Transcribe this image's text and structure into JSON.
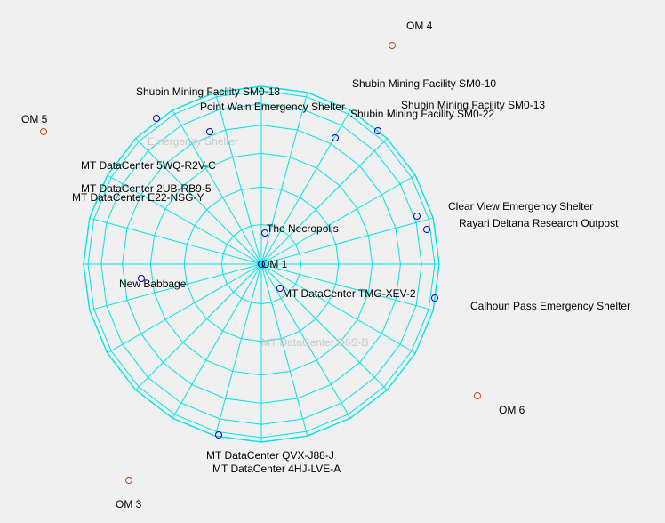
{
  "colors": {
    "background": "#f0f0f0",
    "sphere": "#00e5e5",
    "marker_blue": "#0000cc",
    "marker_orange": "#d04010",
    "label": "#000000",
    "label_faint": "#c8c8c8"
  },
  "sphere": {
    "meridians": 24,
    "parallels": 7
  },
  "labels": [
    {
      "text": "OM 4",
      "tone": "dark",
      "marker": "orange"
    },
    {
      "text": "OM 5",
      "tone": "dark",
      "marker": "orange"
    },
    {
      "text": "OM 6",
      "tone": "dark",
      "marker": "orange"
    },
    {
      "text": "OM 3",
      "tone": "dark",
      "marker": "orange"
    },
    {
      "text": "OM 1",
      "tone": "dark",
      "marker": "blue"
    },
    {
      "text": "Shubin Mining Facility SM0-10",
      "tone": "dark",
      "marker": "none"
    },
    {
      "text": "Shubin Mining Facility SM0-13",
      "tone": "dark",
      "marker": "blue"
    },
    {
      "text": "Shubin Mining Facility SM0-22",
      "tone": "dark",
      "marker": "blue"
    },
    {
      "text": "Shubin Mining Facility SM0-18",
      "tone": "dark",
      "marker": "blue"
    },
    {
      "text": "Point Wain Emergency Shelter",
      "tone": "dark",
      "marker": "blue"
    },
    {
      "text": "Emergency Shelter",
      "tone": "faint",
      "marker": "none"
    },
    {
      "text": "MT DataCenter 5WQ-R2V-C",
      "tone": "dark",
      "marker": "none"
    },
    {
      "text": "MT DataCenter 2UB-RB9-5",
      "tone": "dark",
      "marker": "none"
    },
    {
      "text": "MT DataCenter E22-NSG-Y",
      "tone": "dark",
      "marker": "none"
    },
    {
      "text": "Clear View Emergency Shelter",
      "tone": "dark",
      "marker": "blue"
    },
    {
      "text": "Rayari Deltana Research Outpost",
      "tone": "dark",
      "marker": "blue"
    },
    {
      "text": "The Necropolis",
      "tone": "dark",
      "marker": "blue"
    },
    {
      "text": "New Babbage",
      "tone": "dark",
      "marker": "blue"
    },
    {
      "text": "MT DataCenter TMG-XEV-2",
      "tone": "dark",
      "marker": "blue"
    },
    {
      "text": "Calhoun Pass Emergency Shelter",
      "tone": "dark",
      "marker": "blue"
    },
    {
      "text": "MT DataCenter D6S-B",
      "tone": "faint",
      "marker": "none"
    },
    {
      "text": "MT DataCenter QVX-J88-J",
      "tone": "dark",
      "marker": "blue"
    },
    {
      "text": "MT DataCenter 4HJ-LVE-A",
      "tone": "dark",
      "marker": "none"
    }
  ]
}
